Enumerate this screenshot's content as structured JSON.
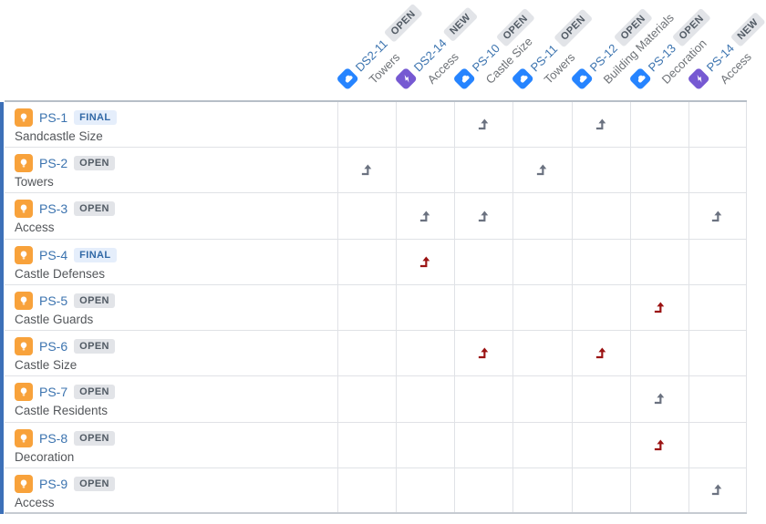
{
  "view": {
    "name": "Traceability matrix",
    "colors": {
      "accent_bar": "#3C70B8",
      "link_blue": "#3B73AF",
      "arrow_gray": "#6B7280",
      "arrow_red": "#9B1313",
      "icon_orange": "#F8A23B",
      "icon_blue": "#2684FF",
      "icon_purple": "#7659D2"
    }
  },
  "columns": [
    {
      "key": "DS2-11",
      "status": "OPEN",
      "status_style": "gray",
      "summary": "Towers",
      "icon": "cloud"
    },
    {
      "key": "DS2-14",
      "status": "NEW",
      "status_style": "gray",
      "summary": "Access",
      "icon": "bolt"
    },
    {
      "key": "PS-10",
      "status": "OPEN",
      "status_style": "gray",
      "summary": "Castle Size",
      "icon": "cloud"
    },
    {
      "key": "PS-11",
      "status": "OPEN",
      "status_style": "gray",
      "summary": "Towers",
      "icon": "cloud"
    },
    {
      "key": "PS-12",
      "status": "OPEN",
      "status_style": "gray",
      "summary": "Building Materials",
      "icon": "cloud"
    },
    {
      "key": "PS-13",
      "status": "OPEN",
      "status_style": "gray",
      "summary": "Decoration",
      "icon": "cloud"
    },
    {
      "key": "PS-14",
      "status": "NEW",
      "status_style": "gray",
      "summary": "Access",
      "icon": "bolt"
    }
  ],
  "rows": [
    {
      "key": "PS-1",
      "status": "FINAL",
      "status_style": "blue",
      "summary": "Sandcastle Size",
      "icon": "idea",
      "links": [
        null,
        null,
        "gray",
        null,
        "gray",
        null,
        null
      ]
    },
    {
      "key": "PS-2",
      "status": "OPEN",
      "status_style": "gray",
      "summary": "Towers",
      "icon": "idea",
      "links": [
        "gray",
        null,
        null,
        "gray",
        null,
        null,
        null
      ]
    },
    {
      "key": "PS-3",
      "status": "OPEN",
      "status_style": "gray",
      "summary": "Access",
      "icon": "idea",
      "links": [
        null,
        "gray",
        "gray",
        null,
        null,
        null,
        "gray"
      ]
    },
    {
      "key": "PS-4",
      "status": "FINAL",
      "status_style": "blue",
      "summary": "Castle Defenses",
      "icon": "idea",
      "links": [
        null,
        "red",
        null,
        null,
        null,
        null,
        null
      ]
    },
    {
      "key": "PS-5",
      "status": "OPEN",
      "status_style": "gray",
      "summary": "Castle Guards",
      "icon": "idea",
      "links": [
        null,
        null,
        null,
        null,
        null,
        "red",
        null
      ]
    },
    {
      "key": "PS-6",
      "status": "OPEN",
      "status_style": "gray",
      "summary": "Castle Size",
      "icon": "idea",
      "links": [
        null,
        null,
        "red",
        null,
        "red",
        null,
        null
      ]
    },
    {
      "key": "PS-7",
      "status": "OPEN",
      "status_style": "gray",
      "summary": "Castle Residents",
      "icon": "idea",
      "links": [
        null,
        null,
        null,
        null,
        null,
        "gray",
        null
      ]
    },
    {
      "key": "PS-8",
      "status": "OPEN",
      "status_style": "gray",
      "summary": "Decoration",
      "icon": "idea",
      "links": [
        null,
        null,
        null,
        null,
        null,
        "red",
        null
      ]
    },
    {
      "key": "PS-9",
      "status": "OPEN",
      "status_style": "gray",
      "summary": "Access",
      "icon": "idea",
      "links": [
        null,
        null,
        null,
        null,
        null,
        null,
        "gray"
      ]
    }
  ]
}
